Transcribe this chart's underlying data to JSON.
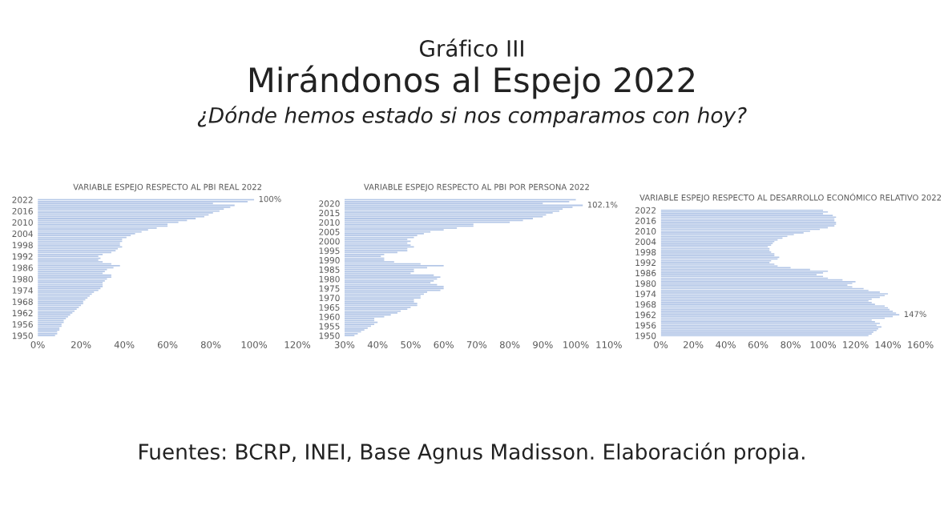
{
  "chart_data": [
    {
      "type": "bar",
      "orientation": "horizontal",
      "title": "VARIABLE ESPEJO RESPECTO AL PBI REAL 2022",
      "annotations": [
        "Gráfico III",
        "Mirándonos al Espejo 2022",
        "¿Dónde hemos estado si nos comparamos con hoy?",
        "Fuentes: BCRP, INEI, Base Agnus Madisson. Elaboración propia."
      ],
      "categories": [
        "2022",
        null,
        null,
        null,
        null,
        null,
        "2016",
        null,
        null,
        null,
        null,
        null,
        "2010",
        null,
        null,
        null,
        null,
        null,
        "2004",
        null,
        null,
        null,
        null,
        null,
        "1998",
        null,
        null,
        null,
        null,
        null,
        "1992",
        null,
        null,
        null,
        null,
        null,
        "1986",
        null,
        null,
        null,
        null,
        null,
        "1980",
        null,
        null,
        null,
        null,
        null,
        "1974",
        null,
        null,
        null,
        null,
        null,
        "1968",
        null,
        null,
        null,
        null,
        null,
        "1962",
        null,
        null,
        null,
        null,
        null,
        "1956",
        null,
        null,
        null,
        null,
        null,
        "1950"
      ],
      "values": [
        100,
        97,
        81,
        91,
        89,
        86,
        84,
        81,
        79,
        77,
        73,
        69,
        65,
        60,
        60,
        55,
        51,
        48,
        45,
        43,
        41,
        39,
        39,
        38,
        38,
        39,
        37,
        36,
        34,
        30,
        28,
        29,
        28,
        30,
        34,
        38,
        35,
        32,
        31,
        30,
        34,
        34,
        32,
        31,
        30,
        30,
        30,
        29,
        28,
        26,
        25,
        24,
        23,
        22,
        21,
        21,
        20,
        19,
        18,
        17,
        16,
        15,
        14,
        13,
        12,
        12,
        11,
        11,
        10,
        10,
        9,
        9,
        8
      ],
      "value_labels": [
        "100%",
        null,
        null,
        null,
        null,
        null,
        null,
        null,
        null,
        null,
        null,
        null,
        null,
        null,
        null,
        null,
        null,
        null,
        null,
        null,
        null,
        null,
        null,
        null,
        null,
        null,
        null,
        null,
        null,
        null,
        null,
        null,
        null,
        null,
        null,
        null,
        null,
        null,
        null,
        null,
        null,
        null,
        null,
        null,
        null,
        null,
        null,
        null,
        null,
        null,
        null,
        null,
        null,
        null,
        null,
        null,
        null,
        null,
        null,
        null,
        null,
        null,
        null,
        null,
        null,
        null,
        null,
        null,
        null,
        null,
        null,
        null,
        null
      ],
      "color": "#b4c7e7",
      "xlim": [
        0,
        120
      ],
      "xticks": [
        {
          "value": 0,
          "label": "0%"
        },
        {
          "value": 20,
          "label": "20%"
        },
        {
          "value": 40,
          "label": "40%"
        },
        {
          "value": 60,
          "label": "60%"
        },
        {
          "value": 80,
          "label": "80%"
        },
        {
          "value": 100,
          "label": "100%"
        },
        {
          "value": 120,
          "label": "120%"
        }
      ],
      "grid": false,
      "legend": false
    },
    {
      "type": "bar",
      "orientation": "horizontal",
      "title": "VARIABLE ESPEJO RESPECTO AL PBI POR PERSONA 2022",
      "categories": [
        null,
        null,
        "2020",
        null,
        null,
        null,
        null,
        "2015",
        null,
        null,
        null,
        null,
        "2010",
        null,
        null,
        null,
        null,
        "2005",
        null,
        null,
        null,
        null,
        "2000",
        null,
        null,
        null,
        null,
        "1995",
        null,
        null,
        null,
        null,
        "1990",
        null,
        null,
        null,
        null,
        "1985",
        null,
        null,
        null,
        null,
        "1980",
        null,
        null,
        null,
        null,
        "1975",
        null,
        null,
        null,
        null,
        "1970",
        null,
        null,
        null,
        null,
        "1965",
        null,
        null,
        null,
        null,
        "1960",
        null,
        null,
        null,
        null,
        "1955",
        null,
        null,
        null,
        null,
        "1950"
      ],
      "values": [
        100,
        98,
        90,
        102.1,
        99,
        96,
        95,
        93,
        91,
        90,
        87,
        84,
        80,
        69,
        69,
        64,
        60,
        56,
        54,
        52,
        51,
        49,
        50,
        49,
        50,
        51,
        49,
        49,
        46,
        42,
        41,
        42,
        42,
        45,
        53,
        60,
        55,
        51,
        51,
        50,
        57,
        59,
        58,
        57,
        56,
        58,
        60,
        60,
        59,
        55,
        54,
        53,
        53,
        51,
        51,
        52,
        52,
        50,
        49,
        47,
        46,
        44,
        42,
        39,
        39,
        40,
        39,
        38,
        37,
        36,
        35,
        34,
        33
      ],
      "value_labels": [
        null,
        null,
        null,
        "102.1%",
        null,
        null,
        null,
        null,
        null,
        null,
        null,
        null,
        null,
        null,
        null,
        null,
        null,
        null,
        null,
        null,
        null,
        null,
        null,
        null,
        null,
        null,
        null,
        null,
        null,
        null,
        null,
        null,
        null,
        null,
        null,
        null,
        null,
        null,
        null,
        null,
        null,
        null,
        null,
        null,
        null,
        null,
        null,
        null,
        null,
        null,
        null,
        null,
        null,
        null,
        null,
        null,
        null,
        null,
        null,
        null,
        null,
        null,
        null,
        null,
        null,
        null,
        null,
        null,
        null,
        null,
        null,
        null,
        null
      ],
      "color": "#b4c7e7",
      "xlim": [
        30,
        110
      ],
      "xticks": [
        {
          "value": 30,
          "label": "30%"
        },
        {
          "value": 40,
          "label": "40%"
        },
        {
          "value": 50,
          "label": "50%"
        },
        {
          "value": 60,
          "label": "60%"
        },
        {
          "value": 70,
          "label": "70%"
        },
        {
          "value": 80,
          "label": "80%"
        },
        {
          "value": 90,
          "label": "90%"
        },
        {
          "value": 100,
          "label": "100%"
        },
        {
          "value": 110,
          "label": "110%"
        }
      ],
      "grid": false,
      "legend": false
    },
    {
      "type": "bar",
      "orientation": "horizontal",
      "title": "VARIABLE ESPEJO RESPECTO AL DESARROLLO ECONÓMICO RELATIVO 2022",
      "categories": [
        "2022",
        null,
        null,
        null,
        null,
        null,
        "2016",
        null,
        null,
        null,
        null,
        null,
        "2010",
        null,
        null,
        null,
        null,
        null,
        "2004",
        null,
        null,
        null,
        null,
        null,
        "1998",
        null,
        null,
        null,
        null,
        null,
        "1992",
        null,
        null,
        null,
        null,
        null,
        "1986",
        null,
        null,
        null,
        null,
        null,
        "1980",
        null,
        null,
        null,
        null,
        null,
        "1974",
        null,
        null,
        null,
        null,
        null,
        "1968",
        null,
        null,
        null,
        null,
        null,
        "1962",
        null,
        null,
        null,
        null,
        null,
        "1956",
        null,
        null,
        null,
        null,
        null,
        "1950"
      ],
      "values": [
        100,
        103,
        100,
        106,
        108,
        107,
        107,
        108,
        108,
        107,
        103,
        98,
        92,
        88,
        82,
        78,
        75,
        72,
        70,
        69,
        68,
        66,
        67,
        67,
        68,
        70,
        70,
        73,
        72,
        68,
        67,
        70,
        72,
        80,
        92,
        103,
        100,
        96,
        100,
        103,
        112,
        120,
        118,
        115,
        118,
        125,
        128,
        135,
        140,
        138,
        135,
        130,
        128,
        130,
        132,
        138,
        140,
        141,
        143,
        145,
        147,
        143,
        138,
        130,
        132,
        135,
        133,
        136,
        134,
        133,
        131,
        130,
        128
      ],
      "value_labels": [
        null,
        null,
        null,
        null,
        null,
        null,
        null,
        null,
        null,
        null,
        null,
        null,
        null,
        null,
        null,
        null,
        null,
        null,
        null,
        null,
        null,
        null,
        null,
        null,
        null,
        null,
        null,
        null,
        null,
        null,
        null,
        null,
        null,
        null,
        null,
        null,
        null,
        null,
        null,
        null,
        null,
        null,
        null,
        null,
        null,
        null,
        null,
        null,
        null,
        null,
        null,
        null,
        null,
        null,
        null,
        null,
        null,
        null,
        null,
        null,
        "147%",
        null,
        null,
        null,
        null,
        null,
        null,
        null,
        null,
        null,
        null,
        null,
        null
      ],
      "color": "#b4c7e7",
      "xlim": [
        0,
        160
      ],
      "xticks": [
        {
          "value": 0,
          "label": "0%"
        },
        {
          "value": 20,
          "label": "20%"
        },
        {
          "value": 40,
          "label": "40%"
        },
        {
          "value": 60,
          "label": "60%"
        },
        {
          "value": 80,
          "label": "80%"
        },
        {
          "value": 100,
          "label": "100%"
        },
        {
          "value": 120,
          "label": "120%"
        },
        {
          "value": 140,
          "label": "140%"
        },
        {
          "value": 160,
          "label": "160%"
        }
      ],
      "grid": false,
      "legend": false
    }
  ]
}
